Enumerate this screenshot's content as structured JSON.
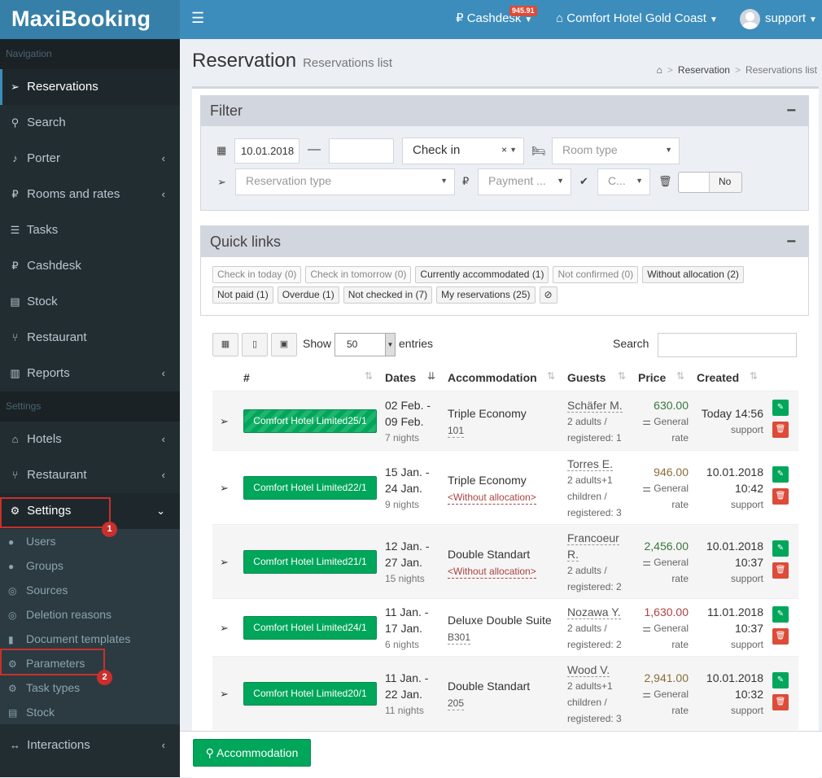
{
  "header": {
    "logo": "MaxiBooking",
    "cashdesk_label": "Cashdesk",
    "cashdesk_badge": "945.91",
    "hotel_label": "Comfort Hotel Gold Coast",
    "user_label": "support"
  },
  "sidebar": {
    "nav_header": "Navigation",
    "nav_items": [
      {
        "label": "Reservations",
        "icon": "paper-plane-icon"
      },
      {
        "label": "Search",
        "icon": "search-icon"
      },
      {
        "label": "Porter",
        "icon": "bell-icon"
      },
      {
        "label": "Rooms and rates",
        "icon": "ruble-icon"
      },
      {
        "label": "Tasks",
        "icon": "tasks-icon"
      },
      {
        "label": "Cashdesk",
        "icon": "ruble-icon"
      },
      {
        "label": "Stock",
        "icon": "book-icon"
      },
      {
        "label": "Restaurant",
        "icon": "cutlery-icon"
      },
      {
        "label": "Reports",
        "icon": "chart-icon"
      }
    ],
    "settings_header": "Settings",
    "settings_items": [
      {
        "label": "Hotels",
        "icon": "home-icon"
      },
      {
        "label": "Restaurant",
        "icon": "cutlery-icon"
      },
      {
        "label": "Settings",
        "icon": "cogs-icon"
      }
    ],
    "sub_items": [
      {
        "label": "Users",
        "icon": "user-icon"
      },
      {
        "label": "Groups",
        "icon": "users-icon"
      },
      {
        "label": "Sources",
        "icon": "compass-icon"
      },
      {
        "label": "Deletion reasons",
        "icon": "compass-icon"
      },
      {
        "label": "Document templates",
        "icon": "file-icon"
      },
      {
        "label": "Parameters",
        "icon": "gear-icon"
      },
      {
        "label": "Task types",
        "icon": "gear-icon"
      },
      {
        "label": "Stock",
        "icon": "book-icon"
      }
    ],
    "interactions_label": "Interactions",
    "marker1": "1",
    "marker2": "2"
  },
  "page": {
    "title": "Reservation",
    "subtitle": "Reservations list",
    "breadcrumb": [
      "Reservation",
      "Reservations list"
    ]
  },
  "filter": {
    "title": "Filter",
    "date_from": "10.01.2018",
    "date_to": "",
    "date_type": "Check in",
    "room_type_placeholder": "Room type",
    "reservation_type_placeholder": "Reservation type",
    "payment_placeholder": "Payment ...",
    "confirmed_placeholder": "C...",
    "deleted_toggle": "No"
  },
  "quick_links": {
    "title": "Quick links",
    "row1": [
      "Check in today (0)",
      "Check in tomorrow (0)",
      "Currently accommodated (1)",
      "Not confirmed (0)",
      "Without allocation (2)"
    ],
    "row2": [
      "Not paid (1)",
      "Overdue (1)",
      "Not checked in (7)",
      "My reservations (25)"
    ]
  },
  "table_controls": {
    "show_label": "Show",
    "page_length": "50",
    "entries_label": "entries",
    "search_label": "Search"
  },
  "columns": [
    "#",
    "Dates",
    "Accommodation",
    "Guests",
    "Price",
    "Created"
  ],
  "rows": [
    {
      "hotel": "Comfort Hotel Limited25/1",
      "date1": "02 Feb. -",
      "date2": "09 Feb.",
      "nights": "7 nights",
      "room_type": "Triple Economy",
      "room": "101",
      "guest": "Schäfer M.",
      "guest2": "",
      "g1": "2 adults /",
      "g2": "registered: 1",
      "g3": "",
      "price": "630.00",
      "price_color": "#3c763d",
      "rate1": "General",
      "rate2": "rate",
      "created1": "Today 14:56",
      "created2": "",
      "user": "support"
    },
    {
      "hotel": "Comfort Hotel Limited22/1",
      "date1": "15 Jan. -",
      "date2": "24 Jan.",
      "nights": "9 nights",
      "room_type": "Triple Economy",
      "room": "<Without allocation>",
      "guest": "Torres E.",
      "guest2": "",
      "g1": "2 adults+1",
      "g2": "children /",
      "g3": "registered: 3",
      "price": "946.00",
      "price_color": "#8a6d3b",
      "rate1": "General",
      "rate2": "rate",
      "created1": "10.01.2018",
      "created2": "10:42",
      "user": "support"
    },
    {
      "hotel": "Comfort Hotel Limited21/1",
      "date1": "12 Jan. -",
      "date2": "27 Jan.",
      "nights": "15 nights",
      "room_type": "Double Standart",
      "room": "<Without allocation>",
      "guest": "Francoeur",
      "guest2": "R.",
      "g1": "2 adults /",
      "g2": "registered: 2",
      "g3": "",
      "price": "2,456.00",
      "price_color": "#3c763d",
      "rate1": "General",
      "rate2": "rate",
      "created1": "10.01.2018",
      "created2": "10:37",
      "user": "support"
    },
    {
      "hotel": "Comfort Hotel Limited24/1",
      "date1": "11 Jan. -",
      "date2": "17 Jan.",
      "nights": "6 nights",
      "room_type": "Deluxe Double Suite",
      "room": "B301",
      "guest": "Nozawa Y.",
      "guest2": "",
      "g1": "2 adults /",
      "g2": "registered: 2",
      "g3": "",
      "price": "1,630.00",
      "price_color": "#a94442",
      "rate1": "General",
      "rate2": "rate",
      "created1": "11.01.2018",
      "created2": "10:37",
      "user": "support"
    },
    {
      "hotel": "Comfort Hotel Limited20/1",
      "date1": "11 Jan. -",
      "date2": "22 Jan.",
      "nights": "11 nights",
      "room_type": "Double Standart",
      "room": "205",
      "guest": "Wood V.",
      "guest2": "",
      "g1": "2 adults+1",
      "g2": "children /",
      "g3": "registered: 3",
      "price": "2,941.00",
      "price_color": "#8a6d3b",
      "rate1": "General",
      "rate2": "rate",
      "created1": "10.01.2018",
      "created2": "10:32",
      "user": "support"
    }
  ],
  "footer": {
    "accommodation_button": "Accommodation"
  }
}
